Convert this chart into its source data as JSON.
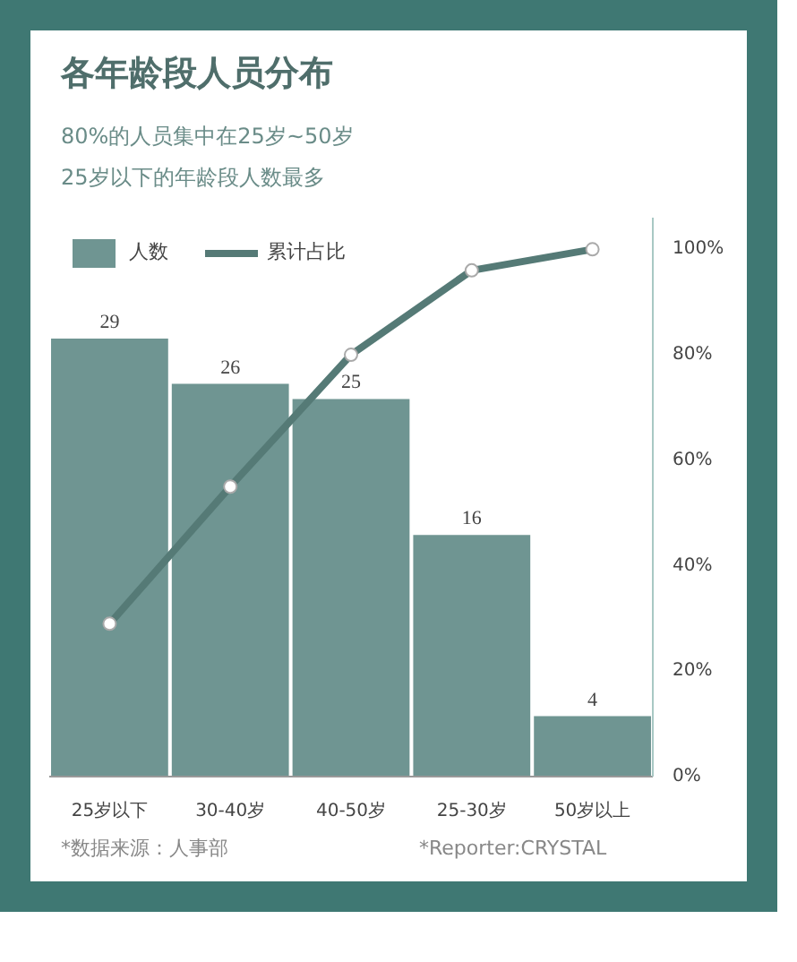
{
  "chart_data": {
    "type": "bar",
    "title": "各年龄段人员分布",
    "subtitle": "80%的人员集中在25岁~50岁\n25岁以下的年龄段人数最多",
    "categories": [
      "25岁以下",
      "30-40岁",
      "40-50岁",
      "25-30岁",
      "50岁以上"
    ],
    "series": [
      {
        "name": "人数",
        "value_labels": [
          "29",
          "26",
          "25",
          "16",
          "4"
        ],
        "color": "#6f9592",
        "values": [
          29,
          26,
          25,
          16,
          4
        ]
      },
      {
        "name": "累计占比",
        "type": "line",
        "axis": "y2",
        "color": "#557a76",
        "values": [
          29,
          55,
          80,
          96,
          100
        ]
      }
    ],
    "ylim": [
      0,
      37
    ],
    "y2lim": [
      0,
      106
    ],
    "y2ticks": [
      {
        "value": 0,
        "label": "0%"
      },
      {
        "value": 20,
        "label": "20%"
      },
      {
        "value": 40,
        "label": "40%"
      },
      {
        "value": 60,
        "label": "60%"
      },
      {
        "value": 80,
        "label": "80%"
      },
      {
        "value": 100,
        "label": "100%"
      }
    ],
    "legend": "top left",
    "marker": "circle",
    "grid": false,
    "annotations": [
      "*数据来源：人事部",
      "*Reporter:CRYSTAL"
    ]
  }
}
